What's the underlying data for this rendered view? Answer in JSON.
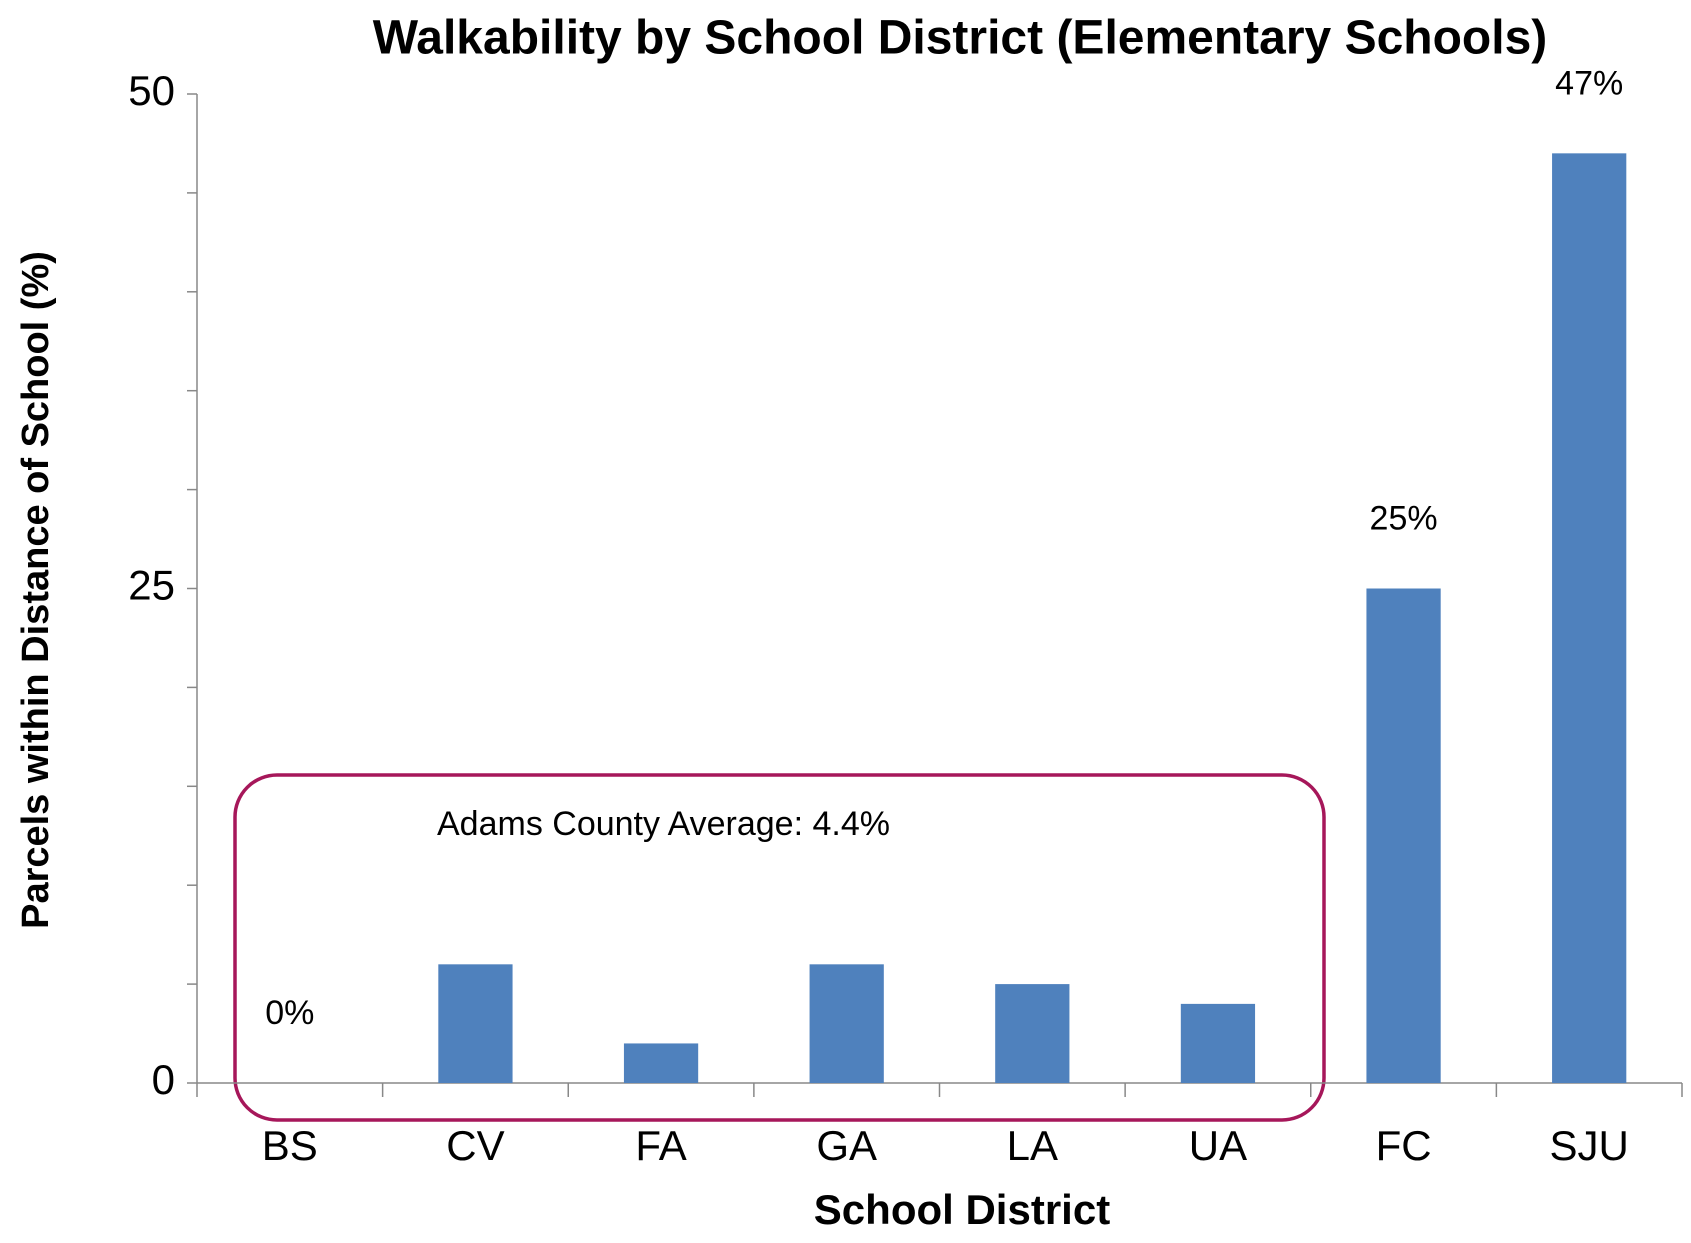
{
  "chart_data": {
    "type": "bar",
    "title": "Walkability by School District (Elementary Schools)",
    "x_label": "School District",
    "y_label": "Parcels within Distance of School (%)",
    "categories": [
      "BS",
      "CV",
      "FA",
      "GA",
      "LA",
      "UA",
      "FC",
      "SJU"
    ],
    "values": [
      0,
      6,
      2,
      6,
      5,
      4,
      25,
      47
    ],
    "value_labels": [
      "0%",
      null,
      null,
      null,
      null,
      null,
      "25%",
      "47%"
    ],
    "color": "#4f81bd",
    "ylim": [
      0,
      50
    ],
    "yticks": [
      0,
      25,
      50
    ],
    "minor_yticks": [
      5,
      10,
      15,
      20,
      30,
      35,
      40,
      45
    ],
    "grid": false,
    "annotation": "Adams County Average: 4.4%"
  }
}
